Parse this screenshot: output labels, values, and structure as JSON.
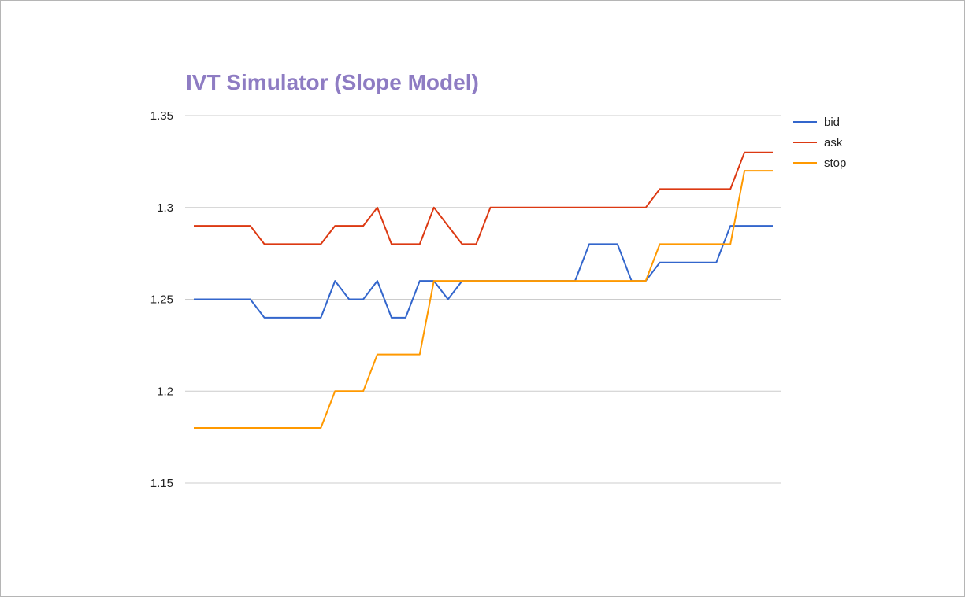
{
  "chart_data": {
    "type": "line",
    "title": "IVT Simulator (Slope Model)",
    "title_color": "#8e7cc3",
    "xlabel": "",
    "ylabel": "",
    "ylim": [
      1.15,
      1.35
    ],
    "yticks": [
      1.35,
      1.3,
      1.25,
      1.2,
      1.15
    ],
    "ytick_labels": [
      "1.35",
      "1.3",
      "1.25",
      "1.2",
      "1.15"
    ],
    "grid": true,
    "legend_position": "right",
    "x": [
      0,
      1,
      2,
      3,
      4,
      5,
      6,
      7,
      8,
      9,
      10,
      11,
      12,
      13,
      14,
      15,
      16,
      17,
      18,
      19,
      20,
      21,
      22,
      23,
      24,
      25,
      26,
      27,
      28,
      29,
      30,
      31,
      32,
      33,
      34,
      35,
      36,
      37,
      38,
      39,
      40,
      41
    ],
    "series": [
      {
        "name": "bid",
        "color": "#3366cc",
        "values": [
          1.25,
          1.25,
          1.25,
          1.25,
          1.25,
          1.24,
          1.24,
          1.24,
          1.24,
          1.24,
          1.26,
          1.25,
          1.25,
          1.26,
          1.24,
          1.24,
          1.26,
          1.26,
          1.25,
          1.26,
          1.26,
          1.26,
          1.26,
          1.26,
          1.26,
          1.26,
          1.26,
          1.26,
          1.28,
          1.28,
          1.28,
          1.26,
          1.26,
          1.27,
          1.27,
          1.27,
          1.27,
          1.27,
          1.29,
          1.29,
          1.29,
          1.29
        ]
      },
      {
        "name": "ask",
        "color": "#dc3912",
        "values": [
          1.29,
          1.29,
          1.29,
          1.29,
          1.29,
          1.28,
          1.28,
          1.28,
          1.28,
          1.28,
          1.29,
          1.29,
          1.29,
          1.3,
          1.28,
          1.28,
          1.28,
          1.3,
          1.29,
          1.28,
          1.28,
          1.3,
          1.3,
          1.3,
          1.3,
          1.3,
          1.3,
          1.3,
          1.3,
          1.3,
          1.3,
          1.3,
          1.3,
          1.31,
          1.31,
          1.31,
          1.31,
          1.31,
          1.31,
          1.33,
          1.33,
          1.33
        ]
      },
      {
        "name": "stop",
        "color": "#ff9900",
        "values": [
          1.18,
          1.18,
          1.18,
          1.18,
          1.18,
          1.18,
          1.18,
          1.18,
          1.18,
          1.18,
          1.2,
          1.2,
          1.2,
          1.22,
          1.22,
          1.22,
          1.22,
          1.26,
          1.26,
          1.26,
          1.26,
          1.26,
          1.26,
          1.26,
          1.26,
          1.26,
          1.26,
          1.26,
          1.26,
          1.26,
          1.26,
          1.26,
          1.26,
          1.28,
          1.28,
          1.28,
          1.28,
          1.28,
          1.28,
          1.32,
          1.32,
          1.32
        ]
      }
    ]
  }
}
